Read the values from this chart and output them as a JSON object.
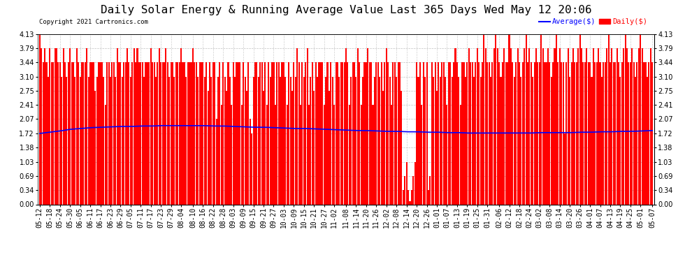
{
  "title": "Daily Solar Energy & Running Average Value Last 365 Days Wed May 12 20:06",
  "copyright_text": "Copyright 2021 Cartronics.com",
  "legend_avg": "Average($)",
  "legend_daily": "Daily($)",
  "bar_color": "#ff0000",
  "avg_line_color": "#0000ff",
  "background_color": "#ffffff",
  "plot_bg_color": "#ffffff",
  "grid_color": "#b0b0b0",
  "ylim": [
    0.0,
    4.13
  ],
  "yticks": [
    0.0,
    0.34,
    0.69,
    1.03,
    1.38,
    1.72,
    2.07,
    2.41,
    2.75,
    3.1,
    3.44,
    3.79,
    4.13
  ],
  "title_fontsize": 11.5,
  "tick_fontsize": 7,
  "copyright_fontsize": 6.5,
  "x_labels": [
    "05-12",
    "05-18",
    "05-24",
    "05-30",
    "06-05",
    "06-11",
    "06-17",
    "06-23",
    "06-29",
    "07-05",
    "07-11",
    "07-17",
    "07-23",
    "07-29",
    "08-04",
    "08-10",
    "08-16",
    "08-22",
    "08-28",
    "09-03",
    "09-09",
    "09-15",
    "09-21",
    "09-27",
    "10-03",
    "10-09",
    "10-15",
    "10-21",
    "10-27",
    "11-02",
    "11-08",
    "11-14",
    "11-20",
    "11-26",
    "12-02",
    "12-08",
    "12-14",
    "12-20",
    "12-26",
    "01-01",
    "01-07",
    "01-13",
    "01-19",
    "01-25",
    "01-31",
    "02-06",
    "02-12",
    "02-18",
    "02-24",
    "03-02",
    "03-08",
    "03-14",
    "03-20",
    "03-26",
    "04-01",
    "04-07",
    "04-13",
    "04-19",
    "04-25",
    "05-01",
    "05-07"
  ],
  "daily_values": [
    4.13,
    3.79,
    3.44,
    3.79,
    3.44,
    3.1,
    3.79,
    3.44,
    3.44,
    3.79,
    3.79,
    3.44,
    3.44,
    3.1,
    3.79,
    3.44,
    3.1,
    3.44,
    3.79,
    3.44,
    3.44,
    3.1,
    3.79,
    3.44,
    3.1,
    3.44,
    3.44,
    3.44,
    3.79,
    3.1,
    3.44,
    3.44,
    3.44,
    2.75,
    3.1,
    3.44,
    3.44,
    3.44,
    3.1,
    2.41,
    3.44,
    3.44,
    3.1,
    3.44,
    3.44,
    3.1,
    3.79,
    3.44,
    3.44,
    3.1,
    3.44,
    3.44,
    3.79,
    3.44,
    3.1,
    3.44,
    3.79,
    3.44,
    3.79,
    3.44,
    3.44,
    3.44,
    3.1,
    3.44,
    3.44,
    3.44,
    3.79,
    3.44,
    3.44,
    3.1,
    3.44,
    3.79,
    3.44,
    3.44,
    3.44,
    3.79,
    3.44,
    3.1,
    3.44,
    3.44,
    3.1,
    3.44,
    3.44,
    3.44,
    3.79,
    3.44,
    3.44,
    3.1,
    3.44,
    3.44,
    3.44,
    3.79,
    3.44,
    3.44,
    3.1,
    3.44,
    3.44,
    3.44,
    3.1,
    3.44,
    2.75,
    3.44,
    3.1,
    3.44,
    3.44,
    2.07,
    3.1,
    3.44,
    2.41,
    3.44,
    3.1,
    2.75,
    3.44,
    3.1,
    2.41,
    3.44,
    3.1,
    3.44,
    3.44,
    3.44,
    2.41,
    3.44,
    3.1,
    2.75,
    3.44,
    2.07,
    1.72,
    3.1,
    3.44,
    3.44,
    3.1,
    3.44,
    3.44,
    2.75,
    3.44,
    2.41,
    3.44,
    3.1,
    3.44,
    3.44,
    2.41,
    3.44,
    3.44,
    3.1,
    3.44,
    3.44,
    3.1,
    2.41,
    3.44,
    3.1,
    2.75,
    3.44,
    3.1,
    3.79,
    3.44,
    2.41,
    3.44,
    3.1,
    3.44,
    3.79,
    2.41,
    3.1,
    3.44,
    2.75,
    3.44,
    3.1,
    3.44,
    3.44,
    3.44,
    2.41,
    3.1,
    3.44,
    2.75,
    3.44,
    3.1,
    2.41,
    3.44,
    3.44,
    3.1,
    3.44,
    3.44,
    3.44,
    3.79,
    3.44,
    2.41,
    3.1,
    3.44,
    3.44,
    3.1,
    3.79,
    3.44,
    2.41,
    3.1,
    3.44,
    3.44,
    3.79,
    3.44,
    3.44,
    2.41,
    3.1,
    3.44,
    3.44,
    3.1,
    3.44,
    2.75,
    3.44,
    3.79,
    3.44,
    3.1,
    2.41,
    3.44,
    3.44,
    3.1,
    3.44,
    3.44,
    2.75,
    0.34,
    0.69,
    1.03,
    0.34,
    0.07,
    0.34,
    0.69,
    1.03,
    3.44,
    3.1,
    3.44,
    2.41,
    3.44,
    3.1,
    3.44,
    0.34,
    0.69,
    3.44,
    3.1,
    3.44,
    2.75,
    3.44,
    3.1,
    3.44,
    3.44,
    3.1,
    2.41,
    3.44,
    3.44,
    3.1,
    3.44,
    3.79,
    3.44,
    3.1,
    2.41,
    3.44,
    3.44,
    3.1,
    3.44,
    3.79,
    3.44,
    3.44,
    3.1,
    3.44,
    3.79,
    3.44,
    3.1,
    3.44,
    4.13,
    3.79,
    3.44,
    3.44,
    3.1,
    3.44,
    3.79,
    4.13,
    3.79,
    3.44,
    3.1,
    3.44,
    3.79,
    3.44,
    3.44,
    4.13,
    3.79,
    3.44,
    3.1,
    3.44,
    3.79,
    3.44,
    3.1,
    3.44,
    3.79,
    4.13,
    3.44,
    3.79,
    3.44,
    3.1,
    3.44,
    3.79,
    3.44,
    3.44,
    4.13,
    3.79,
    3.44,
    3.44,
    3.79,
    3.44,
    3.1,
    3.44,
    3.79,
    4.13,
    3.44,
    3.79,
    3.44,
    3.44,
    1.72,
    3.44,
    3.79,
    3.1,
    3.44,
    3.79,
    3.44,
    3.44,
    3.79,
    4.13,
    3.79,
    3.44,
    3.44,
    3.79,
    3.44,
    3.44,
    3.1,
    3.79,
    3.44,
    3.44,
    3.79,
    3.44,
    3.1,
    3.44,
    3.44,
    3.79,
    4.13,
    3.44,
    3.79,
    3.44,
    3.44,
    3.79,
    3.44,
    3.1,
    3.44,
    3.79,
    4.13,
    3.79,
    3.44,
    3.44,
    3.79,
    3.44,
    3.1,
    3.44,
    3.79,
    4.13,
    3.79,
    3.44,
    3.44,
    3.1,
    3.44,
    3.79,
    3.44,
    2.75,
    3.44,
    3.79,
    3.44,
    3.44,
    3.79,
    3.44,
    3.79
  ],
  "avg_sample": [
    1.72,
    1.75,
    1.78,
    1.82,
    1.84,
    1.86,
    1.87,
    1.88,
    1.89,
    1.89,
    1.9,
    1.9,
    1.91,
    1.91,
    1.91,
    1.91,
    1.91,
    1.9,
    1.9,
    1.89,
    1.88,
    1.87,
    1.87,
    1.86,
    1.85,
    1.84,
    1.84,
    1.83,
    1.82,
    1.81,
    1.8,
    1.79,
    1.79,
    1.78,
    1.77,
    1.77,
    1.76,
    1.76,
    1.75,
    1.75,
    1.74,
    1.74,
    1.73,
    1.73,
    1.73,
    1.73,
    1.73,
    1.73,
    1.73,
    1.74,
    1.74,
    1.74,
    1.74,
    1.75,
    1.75,
    1.76,
    1.76,
    1.77,
    1.77,
    1.78,
    1.79
  ]
}
